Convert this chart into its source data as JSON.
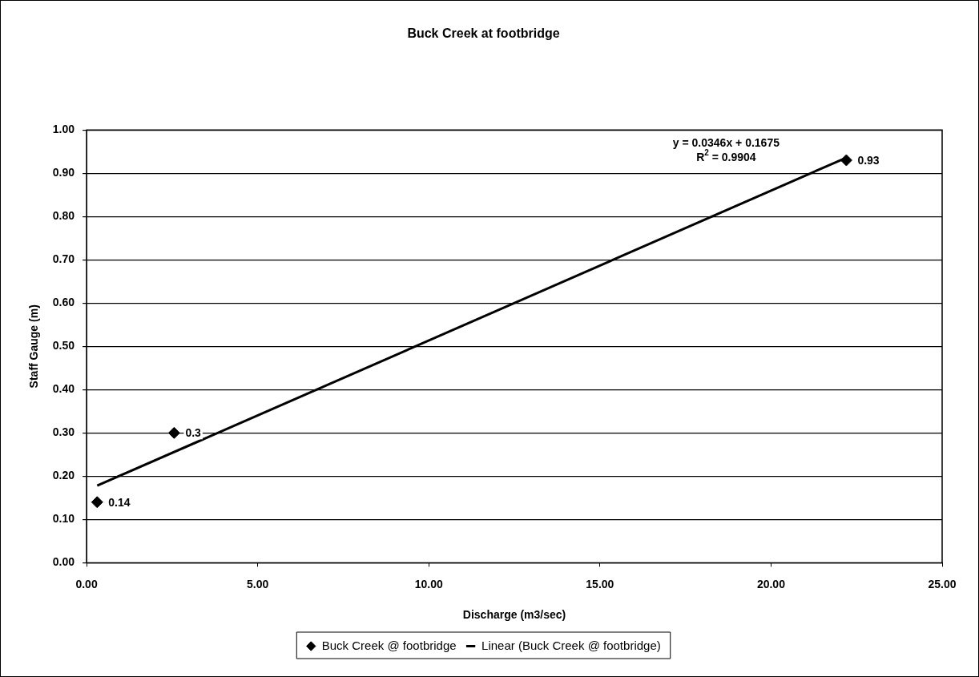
{
  "chart_data": {
    "type": "scatter",
    "title": "Buck Creek at footbridge",
    "xlabel": "Discharge (m3/sec)",
    "ylabel": "Staff Gauge (m)",
    "xlim": [
      0,
      25
    ],
    "xticks": [
      {
        "value": 0,
        "label": "0.00"
      },
      {
        "value": 5,
        "label": "5.00"
      },
      {
        "value": 10,
        "label": "10.00"
      },
      {
        "value": 15,
        "label": "15.00"
      },
      {
        "value": 20,
        "label": "20.00"
      },
      {
        "value": 25,
        "label": "25.00"
      }
    ],
    "ylim": [
      0,
      1
    ],
    "yticks": [
      {
        "value": 0,
        "label": "0.00"
      },
      {
        "value": 0.1,
        "label": "0.10"
      },
      {
        "value": 0.2,
        "label": "0.20"
      },
      {
        "value": 0.3,
        "label": "0.30"
      },
      {
        "value": 0.4,
        "label": "0.40"
      },
      {
        "value": 0.5,
        "label": "0.50"
      },
      {
        "value": 0.6,
        "label": "0.60"
      },
      {
        "value": 0.7,
        "label": "0.70"
      },
      {
        "value": 0.8,
        "label": "0.80"
      },
      {
        "value": 0.9,
        "label": "0.90"
      },
      {
        "value": 1,
        "label": "1.00"
      }
    ],
    "grid": "y",
    "legend": "bottom",
    "series": [
      {
        "name": "Buck Creek @ footbridge",
        "type": "scatter",
        "color": "#000000",
        "marker": "diamond",
        "x": [
          0.31,
          2.56,
          22.2
        ],
        "values": [
          0.14,
          0.3,
          0.93
        ],
        "value_labels": [
          "0.14",
          "0.3",
          "0.93"
        ]
      },
      {
        "name": "Linear (Buck Creek @ footbridge)",
        "type": "line",
        "color": "#000000",
        "marker": "none",
        "line_style": "solid",
        "x": [
          0.31,
          22.2
        ],
        "values": [
          0.178,
          0.936
        ]
      }
    ],
    "annotations": [
      "y = 0.0346x + 0.1675",
      "R$^{2}$ = 0.9904"
    ]
  }
}
